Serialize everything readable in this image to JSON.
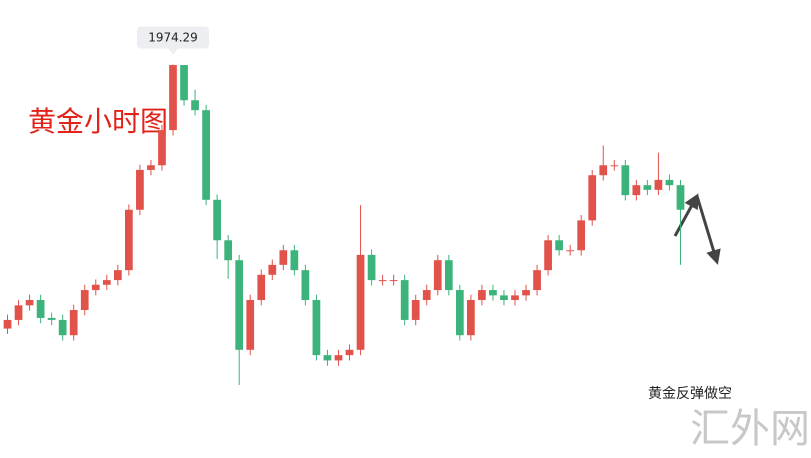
{
  "chart_data": {
    "type": "candlestick",
    "title": "黄金小时图",
    "annotation": "黄金反弹做空",
    "watermark": "汇外网",
    "up_color": "#e0524a",
    "down_color": "#3bb37a",
    "ylim": [
      1915,
      1984
    ],
    "open": [
      1934.5,
      1935.8,
      1938.0,
      1938.8,
      1936.1,
      1935.8,
      1933.5,
      1937.3,
      1940.3,
      1941.1,
      1941.8,
      1943.3,
      1952.4,
      1958.4,
      1959.1,
      1964.4,
      1974.2,
      1968.9,
      1967.4,
      1953.9,
      1947.8,
      1944.8,
      1931.3,
      1938.8,
      1942.6,
      1944.1,
      1946.3,
      1943.3,
      1938.8,
      1930.5,
      1929.7,
      1930.5,
      1931.3,
      1945.6,
      1941.8,
      1941.8,
      1941.8,
      1935.8,
      1938.8,
      1940.3,
      1944.8,
      1940.3,
      1933.5,
      1938.8,
      1940.3,
      1939.5,
      1938.8,
      1939.5,
      1940.3,
      1943.3,
      1947.8,
      1946.3,
      1946.3,
      1950.8,
      1957.6,
      1959.1,
      1959.1,
      1954.6,
      1956.1,
      1955.4,
      1956.9,
      1956.1
    ],
    "high": [
      1936.6,
      1938.8,
      1939.6,
      1939.6,
      1936.9,
      1936.6,
      1938.1,
      1941.1,
      1941.9,
      1942.6,
      1944.1,
      1953.2,
      1959.2,
      1959.9,
      1965.2,
      1974.29,
      1974.0,
      1970.5,
      1968.2,
      1954.7,
      1948.6,
      1945.6,
      1939.6,
      1943.4,
      1944.9,
      1947.1,
      1947.1,
      1944.1,
      1939.6,
      1931.3,
      1931.3,
      1932.1,
      1953.1,
      1946.4,
      1942.6,
      1942.6,
      1942.6,
      1939.6,
      1941.1,
      1945.6,
      1945.6,
      1941.1,
      1939.6,
      1941.1,
      1941.1,
      1940.3,
      1940.3,
      1941.1,
      1944.1,
      1948.6,
      1948.6,
      1947.1,
      1951.6,
      1958.4,
      1962.1,
      1959.9,
      1959.9,
      1956.9,
      1956.9,
      1961.0,
      1957.7,
      1956.9
    ],
    "low": [
      1933.7,
      1935.0,
      1937.2,
      1935.3,
      1935.0,
      1932.7,
      1932.7,
      1936.5,
      1939.5,
      1940.3,
      1941.0,
      1942.5,
      1951.6,
      1957.6,
      1958.3,
      1963.6,
      1968.1,
      1966.6,
      1953.1,
      1945.0,
      1942.0,
      1926.0,
      1930.5,
      1938.0,
      1941.8,
      1943.3,
      1942.5,
      1938.0,
      1929.7,
      1928.9,
      1928.9,
      1929.7,
      1930.5,
      1941.0,
      1941.0,
      1941.0,
      1935.0,
      1935.0,
      1938.0,
      1939.5,
      1939.5,
      1932.7,
      1932.7,
      1938.0,
      1938.7,
      1938.0,
      1938.0,
      1938.7,
      1939.5,
      1942.5,
      1945.5,
      1945.5,
      1945.5,
      1950.0,
      1956.8,
      1958.3,
      1953.8,
      1953.8,
      1954.6,
      1954.6,
      1955.3,
      1944.1
    ],
    "close": [
      1935.8,
      1938.0,
      1938.8,
      1936.1,
      1935.8,
      1933.5,
      1937.3,
      1940.3,
      1941.1,
      1941.8,
      1943.3,
      1952.4,
      1958.4,
      1959.1,
      1964.4,
      1974.2,
      1968.9,
      1967.4,
      1953.9,
      1947.8,
      1944.8,
      1931.3,
      1938.8,
      1942.6,
      1944.1,
      1946.3,
      1943.3,
      1938.8,
      1930.5,
      1929.7,
      1930.5,
      1931.3,
      1945.6,
      1941.8,
      1941.8,
      1941.8,
      1935.8,
      1938.8,
      1940.3,
      1944.8,
      1940.3,
      1933.5,
      1938.8,
      1940.3,
      1939.5,
      1938.8,
      1939.5,
      1940.3,
      1943.3,
      1947.8,
      1946.3,
      1946.3,
      1950.8,
      1957.6,
      1959.1,
      1959.1,
      1954.6,
      1956.1,
      1955.4,
      1956.9,
      1956.1,
      1952.4
    ],
    "peak_index": 15
  }
}
